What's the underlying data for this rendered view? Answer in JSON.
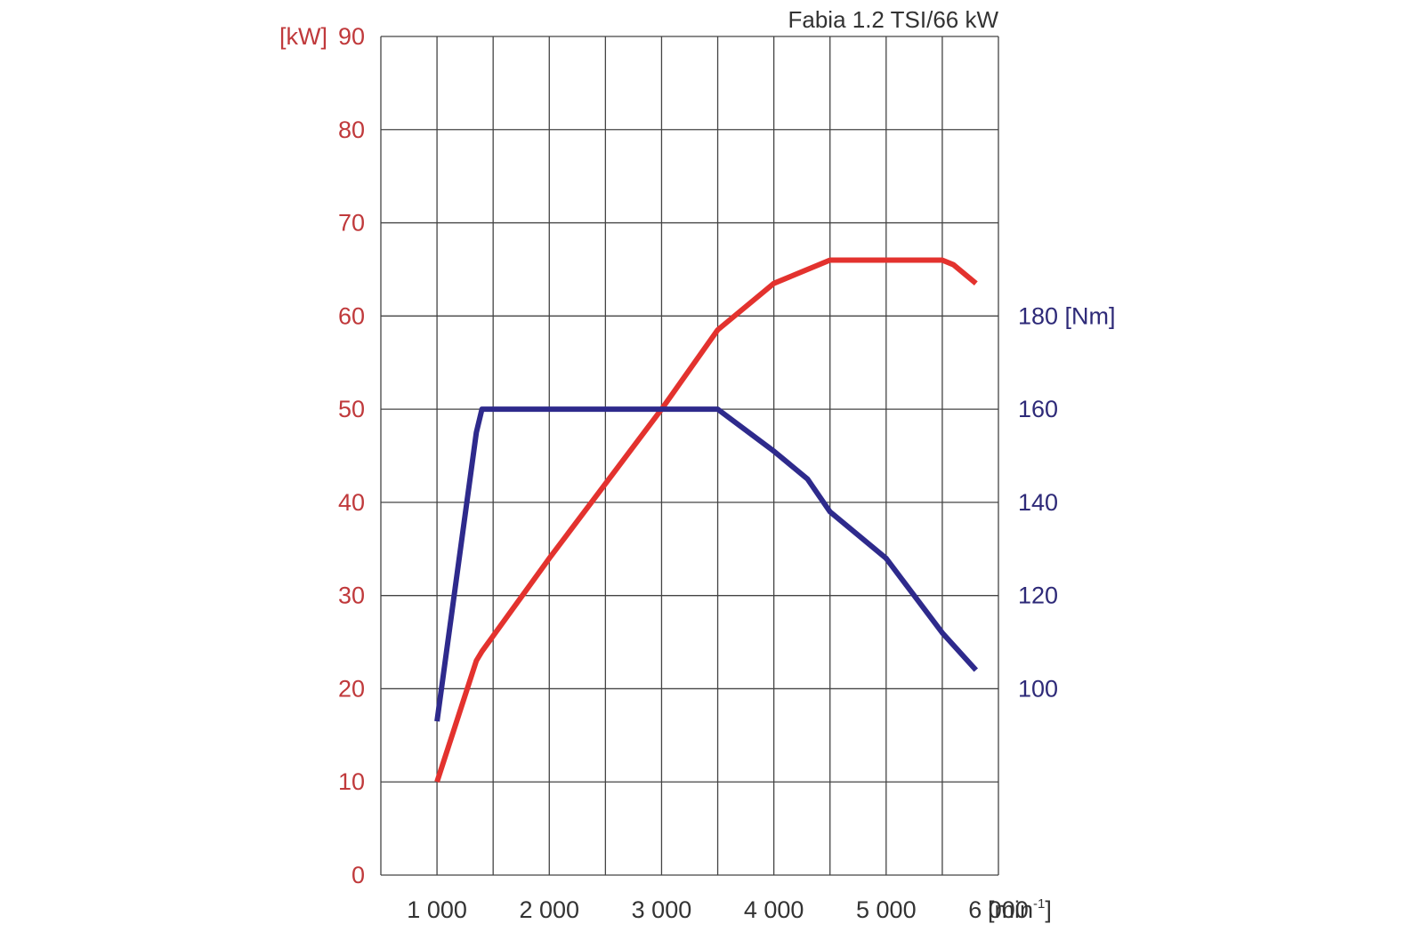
{
  "chart_data": {
    "type": "line",
    "title": "Fabia 1.2 TSI/66 kW",
    "x_axis": {
      "range": [
        500,
        6000
      ],
      "ticks": [
        1000,
        2000,
        3000,
        4000,
        5000,
        6000
      ],
      "tick_labels": [
        "1 000",
        "2 000",
        "3 000",
        "4 000",
        "5 000",
        "6 000"
      ],
      "unit_label": "[min",
      "unit_sup": "-1",
      "unit_close": "]",
      "grid_step": 500
    },
    "y_left": {
      "range": [
        0,
        90
      ],
      "ticks": [
        0,
        10,
        20,
        30,
        40,
        50,
        60,
        70,
        80,
        90
      ],
      "unit_label": "[kW]",
      "color": "#c0393b"
    },
    "y_right": {
      "range": [
        60,
        240
      ],
      "ticks": [
        100,
        120,
        140,
        160,
        180
      ],
      "top_tick_unit": "[Nm]",
      "color": "#2e2a78"
    },
    "grid": true,
    "series": [
      {
        "axis": "left",
        "color": "#e3322e",
        "points": [
          [
            1000,
            10
          ],
          [
            1350,
            23
          ],
          [
            1400,
            24
          ],
          [
            2000,
            34
          ],
          [
            2500,
            42
          ],
          [
            3000,
            50
          ],
          [
            3500,
            58.5
          ],
          [
            4000,
            63.5
          ],
          [
            4500,
            66
          ],
          [
            5500,
            66
          ],
          [
            5600,
            65.5
          ],
          [
            5800,
            63.5
          ]
        ]
      },
      {
        "axis": "right",
        "color": "#2e2a8c",
        "points": [
          [
            1000,
            93
          ],
          [
            1350,
            155
          ],
          [
            1400,
            160
          ],
          [
            3500,
            160
          ],
          [
            4000,
            151
          ],
          [
            4300,
            145
          ],
          [
            4500,
            138
          ],
          [
            5000,
            128
          ],
          [
            5500,
            112
          ],
          [
            5800,
            104
          ]
        ]
      }
    ]
  }
}
